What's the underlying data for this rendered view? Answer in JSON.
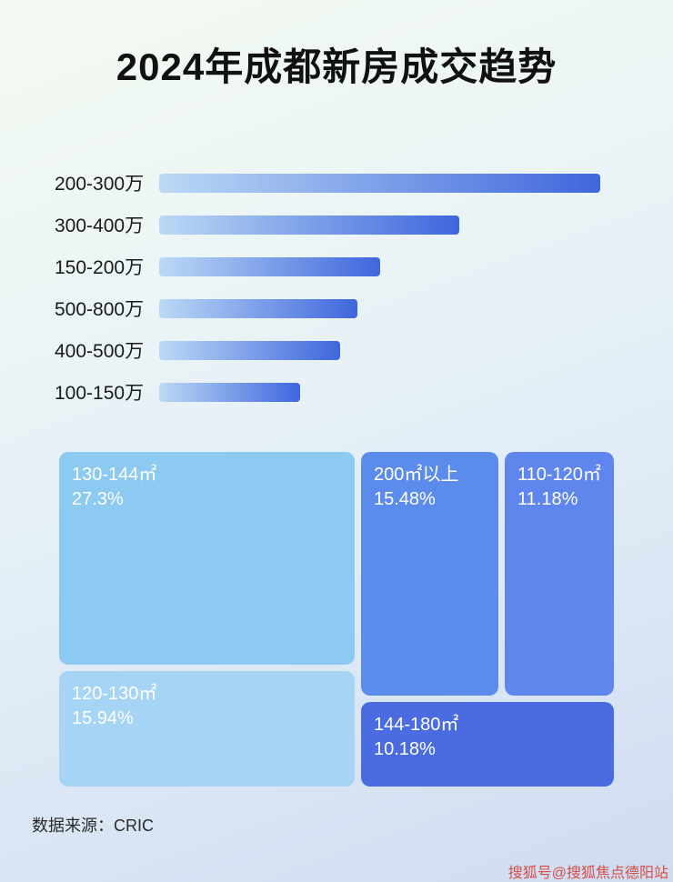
{
  "page": {
    "title": "2024年成都新房成交趋势",
    "source": "数据来源：CRIC",
    "watermark": "搜狐号@搜狐焦点德阳站"
  },
  "chart_data": [
    {
      "type": "bar",
      "orientation": "horizontal",
      "title": "2024年成都新房成交趋势",
      "categories": [
        "200-300万",
        "300-400万",
        "150-200万",
        "500-800万",
        "400-500万",
        "100-150万"
      ],
      "values": [
        100,
        68,
        50,
        45,
        41,
        32
      ],
      "values_note": "relative bar length, % of longest bar; no numeric axis shown",
      "bar_gradient": "linear-gradient(90deg, #bcd9f5, #3f66dd)",
      "bar_color_start": "#bcd9f5",
      "bar_color_end": "#3f66dd",
      "xlabel": "",
      "ylabel": "",
      "grid": false,
      "legend": false
    },
    {
      "type": "treemap",
      "items": [
        {
          "label": "130-144㎡",
          "value": 27.3,
          "display": "27.3%",
          "color": "#8ccaf2"
        },
        {
          "label": "120-130㎡",
          "value": 15.94,
          "display": "15.94%",
          "color": "#a5d4f5"
        },
        {
          "label": "200㎡以上",
          "value": 15.48,
          "display": "15.48%",
          "color": "#5c8ceb"
        },
        {
          "label": "110-120㎡",
          "value": 11.18,
          "display": "11.18%",
          "color": "#5e86ec"
        },
        {
          "label": "144-180㎡",
          "value": 10.18,
          "display": "10.18%",
          "color": "#4a6ce0"
        }
      ],
      "legend": false
    }
  ]
}
